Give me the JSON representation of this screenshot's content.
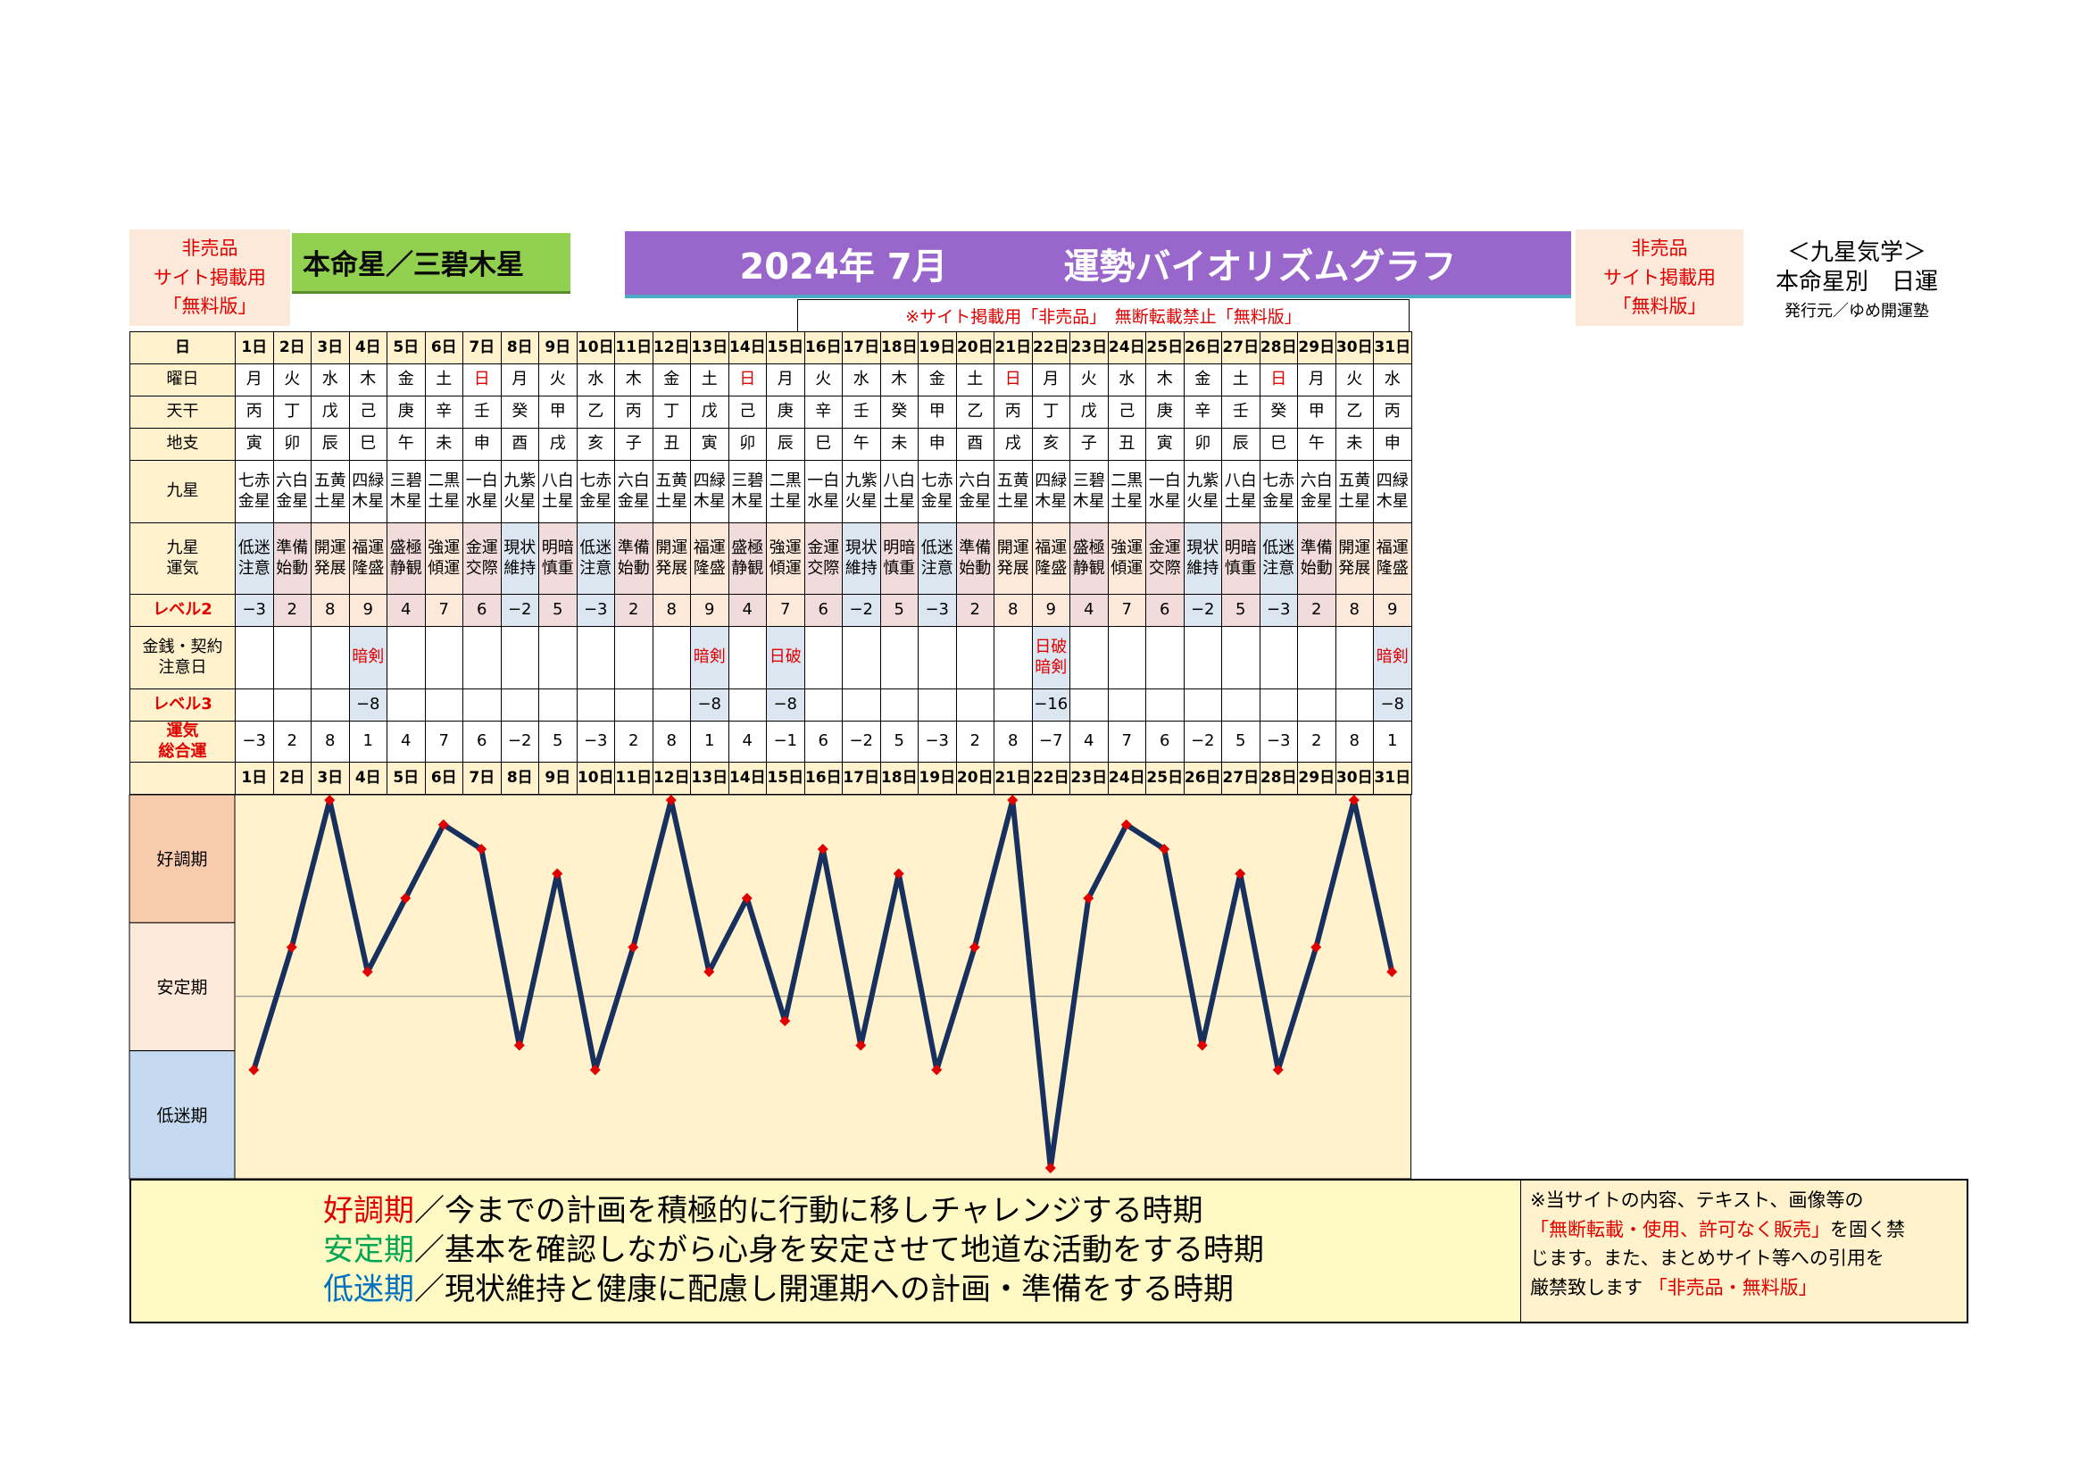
{
  "header": {
    "left_notice": [
      "非売品",
      "サイト掲載用",
      "「無料版」"
    ],
    "honmei": "本命星／三碧木星",
    "title_date": "2024年 7月",
    "title_main": "運勢バイオリズムグラフ",
    "right_notice": [
      "非売品",
      "サイト掲載用",
      "「無料版」"
    ],
    "kyusei_title": "＜九星気学＞",
    "kyusei_sub": "本命星別　日運",
    "publisher": "発行元／ゆめ開運塾",
    "notice_line": "※サイト掲載用「非売品」　無断転載禁止「無料版」"
  },
  "row_labels": {
    "day": "日",
    "weekday": "曜日",
    "tenkan": "天干",
    "chishi": "地支",
    "kyusei": "九星",
    "kyusei_unki": "九星\n運気",
    "level2": "レベル2",
    "kinsen": "金銭・契約\n注意日",
    "level3": "レベル3",
    "sougou": "運気\n総合運"
  },
  "days": [
    "1日",
    "2日",
    "3日",
    "4日",
    "5日",
    "6日",
    "7日",
    "8日",
    "9日",
    "10日",
    "11日",
    "12日",
    "13日",
    "14日",
    "15日",
    "16日",
    "17日",
    "18日",
    "19日",
    "20日",
    "21日",
    "22日",
    "23日",
    "24日",
    "25日",
    "26日",
    "27日",
    "28日",
    "29日",
    "30日",
    "31日"
  ],
  "weekdays": [
    "月",
    "火",
    "水",
    "木",
    "金",
    "土",
    "日",
    "月",
    "火",
    "水",
    "木",
    "金",
    "土",
    "日",
    "月",
    "火",
    "水",
    "木",
    "金",
    "土",
    "日",
    "月",
    "火",
    "水",
    "木",
    "金",
    "土",
    "日",
    "月",
    "火",
    "水"
  ],
  "tenkan": [
    "丙",
    "丁",
    "戊",
    "己",
    "庚",
    "辛",
    "壬",
    "癸",
    "甲",
    "乙",
    "丙",
    "丁",
    "戊",
    "己",
    "庚",
    "辛",
    "壬",
    "癸",
    "甲",
    "乙",
    "丙",
    "丁",
    "戊",
    "己",
    "庚",
    "辛",
    "壬",
    "癸",
    "甲",
    "乙",
    "丙"
  ],
  "chishi": [
    "寅",
    "卯",
    "辰",
    "巳",
    "午",
    "未",
    "申",
    "酉",
    "戌",
    "亥",
    "子",
    "丑",
    "寅",
    "卯",
    "辰",
    "巳",
    "午",
    "未",
    "申",
    "酉",
    "戌",
    "亥",
    "子",
    "丑",
    "寅",
    "卯",
    "辰",
    "巳",
    "午",
    "未",
    "申"
  ],
  "kyusei": [
    "七赤\n金星",
    "六白\n金星",
    "五黄\n土星",
    "四緑\n木星",
    "三碧\n木星",
    "二黒\n土星",
    "一白\n水星",
    "九紫\n火星",
    "八白\n土星",
    "七赤\n金星",
    "六白\n金星",
    "五黄\n土星",
    "四緑\n木星",
    "三碧\n木星",
    "二黒\n土星",
    "一白\n水星",
    "九紫\n火星",
    "八白\n土星",
    "七赤\n金星",
    "六白\n金星",
    "五黄\n土星",
    "四緑\n木星",
    "三碧\n木星",
    "二黒\n土星",
    "一白\n水星",
    "九紫\n火星",
    "八白\n土星",
    "七赤\n金星",
    "六白\n金星",
    "五黄\n土星",
    "四緑\n木星"
  ],
  "unki": [
    "低迷\n注意",
    "準備\n始動",
    "開運\n発展",
    "福運\n隆盛",
    "盛極\n静観",
    "強運\n傾運",
    "金運\n交際",
    "現状\n維持",
    "明暗\n慎重",
    "低迷\n注意",
    "準備\n始動",
    "開運\n発展",
    "福運\n隆盛",
    "盛極\n静観",
    "強運\n傾運",
    "金運\n交際",
    "現状\n維持",
    "明暗\n慎重",
    "低迷\n注意",
    "準備\n始動",
    "開運\n発展",
    "福運\n隆盛",
    "盛極\n静観",
    "強運\n傾運",
    "金運\n交際",
    "現状\n維持",
    "明暗\n慎重",
    "低迷\n注意",
    "準備\n始動",
    "開運\n発展",
    "福運\n隆盛"
  ],
  "level2": [
    "−3",
    "2",
    "8",
    "9",
    "4",
    "7",
    "6",
    "−2",
    "5",
    "−3",
    "2",
    "8",
    "9",
    "4",
    "7",
    "6",
    "−2",
    "5",
    "−3",
    "2",
    "8",
    "9",
    "4",
    "7",
    "6",
    "−2",
    "5",
    "−3",
    "2",
    "8",
    "9"
  ],
  "kinsen": [
    "",
    "",
    "",
    "暗剣",
    "",
    "",
    "",
    "",
    "",
    "",
    "",
    "",
    "暗剣",
    "",
    "日破",
    "",
    "",
    "",
    "",
    "",
    "",
    "日破\n暗剣",
    "",
    "",
    "",
    "",
    "",
    "",
    "",
    "",
    "暗剣"
  ],
  "level3": [
    "",
    "",
    "",
    "−8",
    "",
    "",
    "",
    "",
    "",
    "",
    "",
    "",
    "−8",
    "",
    "−8",
    "",
    "",
    "",
    "",
    "",
    "",
    "−16",
    "",
    "",
    "",
    "",
    "",
    "",
    "",
    "",
    "−8"
  ],
  "sougou": [
    "−3",
    "2",
    "8",
    "1",
    "4",
    "7",
    "6",
    "−2",
    "5",
    "−3",
    "2",
    "8",
    "1",
    "4",
    "−1",
    "6",
    "−2",
    "5",
    "−3",
    "2",
    "8",
    "−7",
    "4",
    "7",
    "6",
    "−2",
    "5",
    "−3",
    "2",
    "8",
    "1"
  ],
  "chart_data": {
    "type": "line",
    "x": [
      "1日",
      "2日",
      "3日",
      "4日",
      "5日",
      "6日",
      "7日",
      "8日",
      "9日",
      "10日",
      "11日",
      "12日",
      "13日",
      "14日",
      "15日",
      "16日",
      "17日",
      "18日",
      "19日",
      "20日",
      "21日",
      "22日",
      "23日",
      "24日",
      "25日",
      "26日",
      "27日",
      "28日",
      "29日",
      "30日",
      "31日"
    ],
    "series": [
      {
        "values": [
          -3,
          2,
          8,
          1,
          4,
          7,
          6,
          -2,
          5,
          -3,
          2,
          8,
          1,
          4,
          -1,
          6,
          -2,
          5,
          -3,
          2,
          8,
          -7,
          4,
          7,
          6,
          -2,
          5,
          -3,
          2,
          8,
          1
        ]
      }
    ],
    "phase_bands": [
      "好調期",
      "安定期",
      "低迷期"
    ],
    "ylim": [
      -7,
      8
    ],
    "line_color": "#17305e",
    "marker_color": "#e00000",
    "grid": false
  },
  "legend": {
    "items": [
      {
        "term": "好調期",
        "color": "#e00000",
        "text": "／今までの計画を積極的に行動に移しチャレンジする時期"
      },
      {
        "term": "安定期",
        "color": "#00a651",
        "text": "／基本を確認しながら心身を安定させて地道な活動をする時期"
      },
      {
        "term": "低迷期",
        "color": "#0070c0",
        "text": "／現状維持と健康に配慮し開運期への計画・準備をする時期"
      }
    ]
  },
  "copyright": {
    "line1": "※当サイトの内容、テキスト、画像等の",
    "line2_red": "「無断転載・使用、許可なく販売」",
    "line2_tail": "を固く禁",
    "line3": "じます。また、まとめサイト等への引用を",
    "line4": "厳禁致します",
    "line4_red": "「非売品・無料版」"
  },
  "colors": {
    "kou_bg": "#f8cbad",
    "antei_bg": "#fde9d9",
    "teimei_bg": "#c5d9f1",
    "plot_bg": "#fff2cc"
  }
}
